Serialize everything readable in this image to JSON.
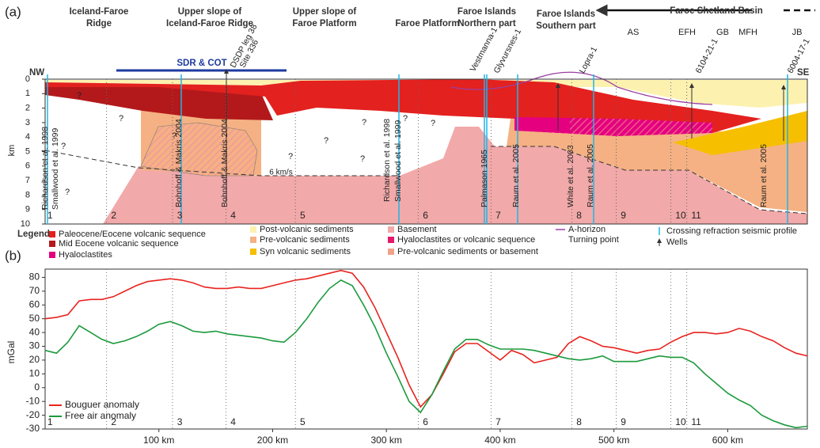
{
  "panel_a": {
    "label": "(a)",
    "regions": [
      [
        "Iceland-Faroe",
        "Ridge"
      ],
      [
        "Upper slope of",
        "Iceland-Faroe Ridge"
      ],
      [
        "Upper slope of",
        "Faroe Platform"
      ],
      [
        "Faroe Platform"
      ],
      [
        "Faroe Islands",
        "Northern part"
      ],
      [
        "Faroe Islands",
        "Southern part"
      ]
    ],
    "basin_label": "Faroe Shetland Basin",
    "zones": [
      "AS",
      "EFH",
      "GB",
      "MFH",
      "JB"
    ],
    "nw": "NW",
    "se": "SE",
    "sdr": "SDR & COT",
    "velocity": "6 km/s",
    "unknown": "?",
    "depth_label": "km",
    "depth_ticks": [
      0,
      1,
      2,
      3,
      4,
      5,
      6,
      7,
      8,
      9,
      10
    ],
    "wells": [
      [
        "DSDP leg 38",
        "Site 336"
      ],
      [
        "Vestmanna-1"
      ],
      [
        "Glyvursnes-1"
      ],
      [
        "Lopra-1"
      ],
      [
        "6104-21-1"
      ],
      [
        "6004-17-1"
      ]
    ],
    "profiles": [
      "Richardson et al. 1998",
      "Smallwood et al. 1999",
      "Bohnhoff & Makris 2004",
      "Bohnhoff & Makris 2004",
      "Richardson et al. 1998",
      "Smallwood et al. 1999",
      "Palmason 1965",
      "Raum et al. 2005",
      "White et al. 2003",
      "Raum et al. 2005",
      "Raum et al. 2005"
    ],
    "legend_title": "Legend:",
    "legend": [
      {
        "label": "Paleocene/Eocene volcanic sequence",
        "color": "#e3211f",
        "kind": "box"
      },
      {
        "label": "Mid Eocene volcanic sequence",
        "color": "#b3191b",
        "kind": "box"
      },
      {
        "label": "Hyaloclastites",
        "color": "#e4007f",
        "kind": "box"
      },
      {
        "label": "Post-volcanic sediments",
        "color": "#fdf1b0",
        "kind": "box"
      },
      {
        "label": "Pre-volcanic sediments",
        "color": "#f5b183",
        "kind": "box"
      },
      {
        "label": "Syn volcanic sediments",
        "color": "#f6bf00",
        "kind": "box"
      },
      {
        "label": "Basement",
        "color": "#f2a9a9",
        "kind": "box"
      },
      {
        "label": "Hyaloclastites or volcanic sequence",
        "color": "#e6186a",
        "kind": "box"
      },
      {
        "label": "Pre-volcanic sediments or basement",
        "color": "#f2a28a",
        "kind": "box"
      },
      {
        "label": "A-horizon",
        "color": "#9b3fa0",
        "kind": "line"
      },
      {
        "label": "Turning point",
        "color": "#333333",
        "kind": "none"
      },
      {
        "label": "Crossing refraction seismic profile",
        "color": "#1fb5e6",
        "kind": "tick"
      },
      {
        "label": "Wells",
        "color": "#333333",
        "kind": "arrow"
      }
    ]
  },
  "chart_data": {
    "type": "line",
    "label": "(b)",
    "y_label": "mGal",
    "x": [
      0,
      10,
      20,
      30,
      40,
      50,
      60,
      70,
      80,
      90,
      100,
      110,
      120,
      130,
      140,
      150,
      160,
      170,
      180,
      190,
      200,
      210,
      220,
      230,
      240,
      250,
      260,
      270,
      280,
      290,
      300,
      310,
      320,
      330,
      340,
      350,
      360,
      370,
      380,
      390,
      400,
      410,
      420,
      430,
      440,
      450,
      460,
      470,
      480,
      490,
      500,
      510,
      520,
      530,
      540,
      550,
      560,
      570,
      580,
      590,
      600,
      610,
      620,
      630,
      640,
      650,
      660,
      670
    ],
    "series": [
      {
        "name": "Bouguer anomaly",
        "color": "#e8231f",
        "values": [
          50,
          51,
          53,
          63,
          64,
          64,
          66,
          70,
          74,
          77,
          78,
          79,
          78,
          76,
          73,
          72,
          72,
          73,
          72,
          72,
          74,
          76,
          78,
          79,
          81,
          83,
          85,
          83,
          73,
          58,
          40,
          22,
          2,
          -14,
          -5,
          10,
          26,
          32,
          32,
          26,
          20,
          27,
          24,
          18,
          20,
          22,
          32,
          37,
          34,
          30,
          29,
          27,
          25,
          27,
          28,
          33,
          37,
          40,
          40,
          39,
          40,
          43,
          41,
          37,
          34,
          29,
          25,
          23
        ]
      },
      {
        "name": "Free air anomaly",
        "color": "#1b9a3d",
        "values": [
          27,
          25,
          33,
          45,
          40,
          35,
          32,
          34,
          37,
          41,
          46,
          48,
          45,
          41,
          40,
          41,
          39,
          38,
          37,
          36,
          34,
          33,
          40,
          50,
          62,
          72,
          78,
          74,
          60,
          44,
          25,
          8,
          -10,
          -18,
          -5,
          12,
          28,
          35,
          35,
          31,
          28,
          28,
          28,
          27,
          25,
          23,
          21,
          20,
          21,
          23,
          19,
          19,
          19,
          21,
          23,
          22,
          22,
          18,
          10,
          3,
          -4,
          -9,
          -13,
          -20,
          -24,
          -27,
          -29,
          -28
        ]
      }
    ],
    "xlim": [
      0,
      670
    ],
    "ylim": [
      -30,
      86
    ],
    "yticks": [
      -30,
      -20,
      -10,
      0,
      10,
      20,
      30,
      40,
      50,
      60,
      70,
      80
    ],
    "xticks": [
      {
        "value": 100,
        "label": "100 km"
      },
      {
        "value": 200,
        "label": "200 km"
      },
      {
        "value": 300,
        "label": "300 km"
      },
      {
        "value": 400,
        "label": "400 km"
      },
      {
        "value": 500,
        "label": "500 km"
      },
      {
        "value": 600,
        "label": "600 km"
      }
    ],
    "segment_labels": [
      "1",
      "2",
      "3",
      "4",
      "5",
      "6",
      "7",
      "8",
      "9",
      "10",
      "11"
    ],
    "segment_bounds": [
      54,
      112,
      159,
      220,
      328,
      392,
      463,
      502,
      550,
      564
    ],
    "legend_corner": "bottom-left"
  }
}
